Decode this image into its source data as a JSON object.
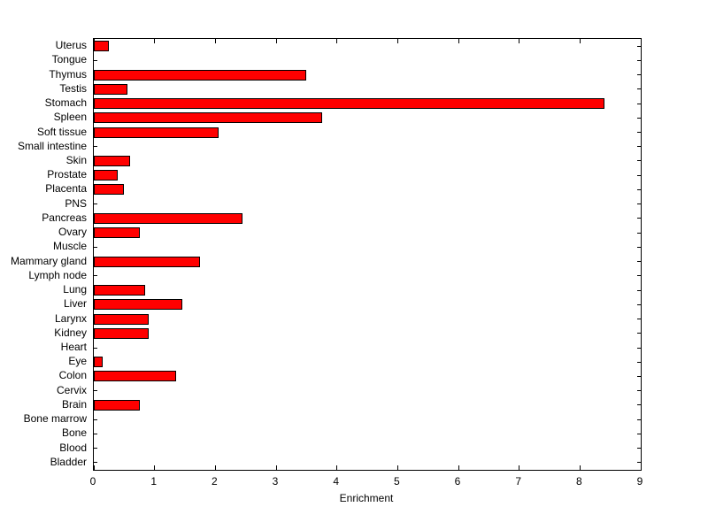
{
  "figure": {
    "background_color": "#ffffff",
    "axis_color": "#000000"
  },
  "chart_data": {
    "type": "bar",
    "orientation": "horizontal",
    "title": "",
    "xlabel": "Enrichment",
    "ylabel": "",
    "xlim": [
      0,
      9
    ],
    "xticks": [
      0,
      1,
      2,
      3,
      4,
      5,
      6,
      7,
      8,
      9
    ],
    "grid": false,
    "legend": false,
    "bar_color": "#ff0000",
    "bar_edge_color": "#000000",
    "categories": [
      "Uterus",
      "Tongue",
      "Thymus",
      "Testis",
      "Stomach",
      "Spleen",
      "Soft tissue",
      "Small intestine",
      "Skin",
      "Prostate",
      "Placenta",
      "PNS",
      "Pancreas",
      "Ovary",
      "Muscle",
      "Mammary gland",
      "Lymph node",
      "Lung",
      "Liver",
      "Larynx",
      "Kidney",
      "Heart",
      "Eye",
      "Colon",
      "Cervix",
      "Brain",
      "Bone marrow",
      "Bone",
      "Blood",
      "Bladder"
    ],
    "values": [
      0.25,
      0,
      3.5,
      0.55,
      8.4,
      3.75,
      2.05,
      0,
      0.6,
      0.4,
      0.5,
      0,
      2.45,
      0.75,
      0,
      1.75,
      0,
      0.85,
      1.45,
      0.9,
      0.9,
      0,
      0.15,
      1.35,
      0,
      0.75,
      0,
      0,
      0,
      0
    ]
  }
}
